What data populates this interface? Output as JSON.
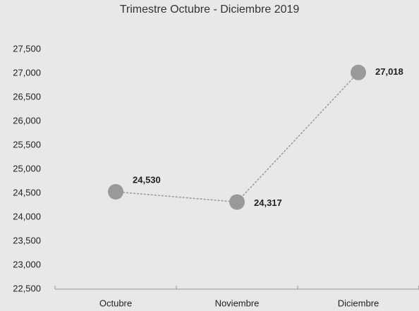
{
  "chart_data": {
    "type": "line",
    "title": "Trimestre Octubre - Diciembre 2019",
    "categories": [
      "Octubre",
      "Noviembre",
      "Diciembre"
    ],
    "values": [
      24530,
      24317,
      27018
    ],
    "value_labels": [
      "24,530",
      "24,317",
      "27,018"
    ],
    "color": "#999999",
    "ylim": [
      22500,
      27500
    ],
    "yticks": [
      {
        "value": 22500,
        "label": "22,500"
      },
      {
        "value": 23000,
        "label": "23,000"
      },
      {
        "value": 23500,
        "label": "23,500"
      },
      {
        "value": 24000,
        "label": "24,000"
      },
      {
        "value": 24500,
        "label": "24,500"
      },
      {
        "value": 25000,
        "label": "25,000"
      },
      {
        "value": 25500,
        "label": "25,500"
      },
      {
        "value": 26000,
        "label": "26,000"
      },
      {
        "value": 26500,
        "label": "26,500"
      },
      {
        "value": 27000,
        "label": "27,000"
      },
      {
        "value": 27500,
        "label": "27,500"
      }
    ],
    "grid": false
  }
}
